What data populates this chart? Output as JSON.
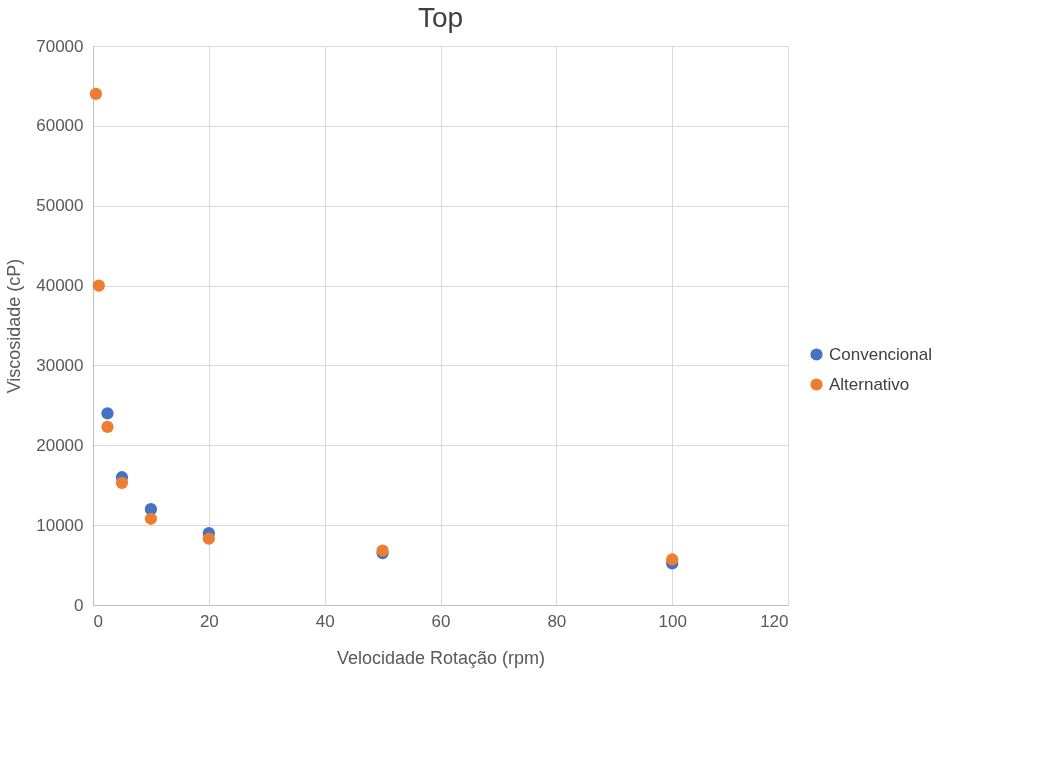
{
  "chart_data": {
    "type": "scatter",
    "title": "Top",
    "xlabel": "Velocidade Rotação (rpm)",
    "ylabel": "Viscosidade (cP)",
    "x": [
      0.5,
      1,
      2.5,
      5,
      10,
      20,
      50,
      100
    ],
    "series": [
      {
        "name": "Convencional",
        "color": "#4472c4",
        "values": [
          null,
          null,
          24000,
          16000,
          12000,
          9000,
          6500,
          5200
        ]
      },
      {
        "name": "Alternativo",
        "color": "#ed7d31",
        "values": [
          64000,
          40000,
          22300,
          15300,
          10800,
          8300,
          6800,
          5700
        ]
      }
    ],
    "xlim": [
      0,
      120
    ],
    "xticks": [
      0,
      20,
      40,
      60,
      80,
      100,
      120
    ],
    "ylim": [
      0,
      70000
    ],
    "yticks": [
      0,
      10000,
      20000,
      30000,
      40000,
      50000,
      60000,
      70000
    ],
    "grid": true,
    "legend": "right",
    "marker": "circle"
  }
}
